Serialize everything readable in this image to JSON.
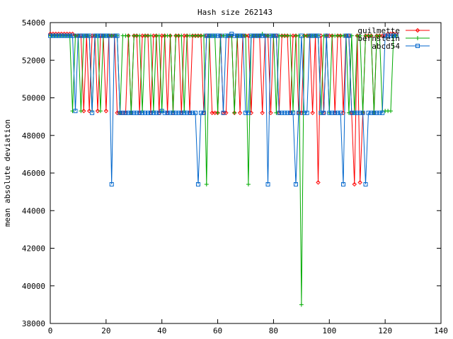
{
  "chart_data": {
    "type": "line",
    "title": "Hash size 262143",
    "xlabel": "",
    "ylabel": "mean absolute deviation",
    "xlim": [
      0,
      140
    ],
    "ylim": [
      38000,
      54000
    ],
    "xticks": [
      0,
      20,
      40,
      60,
      80,
      100,
      120,
      140
    ],
    "yticks": [
      38000,
      40000,
      42000,
      44000,
      46000,
      48000,
      50000,
      52000,
      54000
    ],
    "grid": false,
    "legend_position": "top-right",
    "series": [
      {
        "name": "guilmette",
        "color": "#ff0000",
        "marker": "diamond",
        "x": [
          0,
          1,
          2,
          3,
          4,
          5,
          6,
          7,
          8,
          9,
          10,
          11,
          12,
          13,
          14,
          15,
          16,
          17,
          18,
          19,
          20,
          21,
          22,
          23,
          24,
          25,
          26,
          27,
          28,
          29,
          30,
          31,
          32,
          33,
          34,
          35,
          36,
          37,
          38,
          39,
          40,
          41,
          42,
          43,
          44,
          45,
          46,
          47,
          48,
          49,
          50,
          51,
          52,
          53,
          54,
          55,
          56,
          57,
          58,
          59,
          60,
          61,
          62,
          63,
          64,
          65,
          66,
          67,
          68,
          69,
          70,
          71,
          72,
          73,
          74,
          75,
          76,
          77,
          78,
          79,
          80,
          81,
          82,
          83,
          84,
          85,
          86,
          87,
          88,
          89,
          90,
          91,
          92,
          93,
          94,
          95,
          96,
          97,
          98,
          99,
          100,
          101,
          102,
          103,
          104,
          105,
          106,
          107,
          108,
          109,
          110,
          111,
          112,
          113,
          114,
          115,
          116,
          117,
          118,
          119,
          120,
          121,
          122,
          123,
          124
        ],
        "y": [
          53400,
          53400,
          53400,
          53400,
          53400,
          53400,
          53400,
          53400,
          53400,
          53300,
          53300,
          53300,
          49300,
          53300,
          49300,
          53300,
          53300,
          49300,
          53300,
          53300,
          49300,
          53300,
          53300,
          53300,
          49200,
          49200,
          49200,
          49200,
          53300,
          49200,
          53300,
          53300,
          49200,
          53300,
          53300,
          53300,
          49200,
          53300,
          53300,
          49200,
          53300,
          53300,
          49200,
          53300,
          49200,
          53300,
          53300,
          49200,
          53300,
          53300,
          49200,
          53300,
          53300,
          53300,
          53300,
          49200,
          53300,
          53300,
          49200,
          49200,
          49200,
          53300,
          49200,
          49200,
          53300,
          53300,
          49200,
          53300,
          49200,
          53300,
          53300,
          53300,
          49200,
          53300,
          53300,
          53300,
          49200,
          53300,
          53300,
          49200,
          53300,
          53300,
          49200,
          53300,
          53300,
          53300,
          49200,
          53300,
          53300,
          49200,
          49200,
          53300,
          53300,
          53300,
          49200,
          53300,
          45500,
          53300,
          49200,
          53300,
          53300,
          53300,
          49200,
          53300,
          53300,
          49200,
          53300,
          53300,
          49200,
          45400,
          53300,
          45500,
          49200,
          53300,
          53300,
          53300,
          49200,
          53300,
          53300,
          53300,
          53300,
          53400,
          53400,
          53400,
          53400
        ]
      },
      {
        "name": "bernstein",
        "color": "#00aa00",
        "marker": "plus",
        "x": [
          0,
          1,
          2,
          3,
          4,
          5,
          6,
          7,
          8,
          9,
          10,
          11,
          12,
          13,
          14,
          15,
          16,
          17,
          18,
          19,
          20,
          21,
          22,
          23,
          24,
          25,
          26,
          27,
          28,
          29,
          30,
          31,
          32,
          33,
          34,
          35,
          36,
          37,
          38,
          39,
          40,
          41,
          42,
          43,
          44,
          45,
          46,
          47,
          48,
          49,
          50,
          51,
          52,
          53,
          54,
          55,
          56,
          57,
          58,
          59,
          60,
          61,
          62,
          63,
          64,
          65,
          66,
          67,
          68,
          69,
          70,
          71,
          72,
          73,
          74,
          75,
          76,
          77,
          78,
          79,
          80,
          81,
          82,
          83,
          84,
          85,
          86,
          87,
          88,
          89,
          90,
          91,
          92,
          93,
          94,
          95,
          96,
          97,
          98,
          99,
          100,
          101,
          102,
          103,
          104,
          105,
          106,
          107,
          108,
          109,
          110,
          111,
          112,
          113,
          114,
          115,
          116,
          117,
          118,
          119,
          120,
          121,
          122,
          123,
          124
        ],
        "y": [
          53300,
          53300,
          53300,
          53300,
          53300,
          53300,
          53300,
          53300,
          49300,
          53300,
          53300,
          49300,
          53300,
          53300,
          53300,
          49300,
          53300,
          53300,
          49300,
          53300,
          53300,
          53300,
          53300,
          53300,
          53300,
          49200,
          53300,
          53300,
          53300,
          49200,
          53300,
          53300,
          53300,
          49300,
          53300,
          53300,
          53300,
          49300,
          53300,
          53300,
          49300,
          53300,
          53300,
          53300,
          49300,
          53300,
          53300,
          53300,
          49300,
          53300,
          53300,
          53300,
          53300,
          53300,
          53300,
          53300,
          45400,
          53300,
          53300,
          53300,
          49200,
          53300,
          53300,
          53300,
          53300,
          53300,
          49200,
          53300,
          53300,
          53300,
          53300,
          45400,
          53300,
          53300,
          53300,
          53300,
          53400,
          53300,
          53300,
          53300,
          53300,
          49200,
          53300,
          53300,
          53300,
          53300,
          53300,
          49300,
          53300,
          53300,
          39000,
          53300,
          53300,
          53300,
          53300,
          53300,
          53300,
          49200,
          53300,
          53300,
          49200,
          53300,
          53300,
          53300,
          53300,
          53300,
          53300,
          49200,
          53300,
          49200,
          53300,
          53300,
          49200,
          53300,
          53300,
          53300,
          49200,
          53300,
          53300,
          49300,
          49300,
          49300,
          49300,
          53300,
          53300
        ]
      },
      {
        "name": "abcd54",
        "color": "#0066cc",
        "marker": "square",
        "x": [
          0,
          1,
          2,
          3,
          4,
          5,
          6,
          7,
          8,
          9,
          10,
          11,
          12,
          13,
          14,
          15,
          16,
          17,
          18,
          19,
          20,
          21,
          22,
          23,
          24,
          25,
          26,
          27,
          28,
          29,
          30,
          31,
          32,
          33,
          34,
          35,
          36,
          37,
          38,
          39,
          40,
          41,
          42,
          43,
          44,
          45,
          46,
          47,
          48,
          49,
          50,
          51,
          52,
          53,
          54,
          55,
          56,
          57,
          58,
          59,
          60,
          61,
          62,
          63,
          64,
          65,
          66,
          67,
          68,
          69,
          70,
          71,
          72,
          73,
          74,
          75,
          76,
          77,
          78,
          79,
          80,
          81,
          82,
          83,
          84,
          85,
          86,
          87,
          88,
          89,
          90,
          91,
          92,
          93,
          94,
          95,
          96,
          97,
          98,
          99,
          100,
          101,
          102,
          103,
          104,
          105,
          106,
          107,
          108,
          109,
          110,
          111,
          112,
          113,
          114,
          115,
          116,
          117,
          118,
          119,
          120,
          121,
          122,
          123,
          124
        ],
        "y": [
          53300,
          53300,
          53300,
          53300,
          53300,
          53300,
          53300,
          53300,
          53300,
          49300,
          53300,
          53300,
          53300,
          53300,
          53300,
          49200,
          53300,
          53300,
          53300,
          53300,
          53300,
          53300,
          45400,
          53300,
          53300,
          49200,
          49200,
          49200,
          49200,
          49200,
          49200,
          49200,
          49200,
          49200,
          49200,
          49200,
          49200,
          49200,
          49200,
          49200,
          49300,
          49200,
          49200,
          49200,
          49200,
          49200,
          49200,
          49200,
          49200,
          49200,
          49200,
          49200,
          49200,
          45400,
          49200,
          49200,
          53300,
          53300,
          53300,
          53300,
          53300,
          53300,
          49200,
          53300,
          53300,
          53400,
          53300,
          53300,
          53300,
          53300,
          49200,
          49200,
          53300,
          53300,
          53300,
          53300,
          53300,
          53300,
          45400,
          53300,
          53300,
          53300,
          49200,
          49200,
          49200,
          49200,
          49200,
          49200,
          45400,
          49200,
          53300,
          49200,
          49200,
          53300,
          53300,
          53300,
          53300,
          49200,
          49200,
          53300,
          49200,
          49200,
          49200,
          49200,
          49200,
          45400,
          53300,
          53300,
          49200,
          49200,
          49200,
          49200,
          49200,
          45400,
          49200,
          49200,
          49200,
          49200,
          49200,
          49200,
          53300,
          53300,
          53300,
          53300,
          53300
        ]
      }
    ]
  }
}
